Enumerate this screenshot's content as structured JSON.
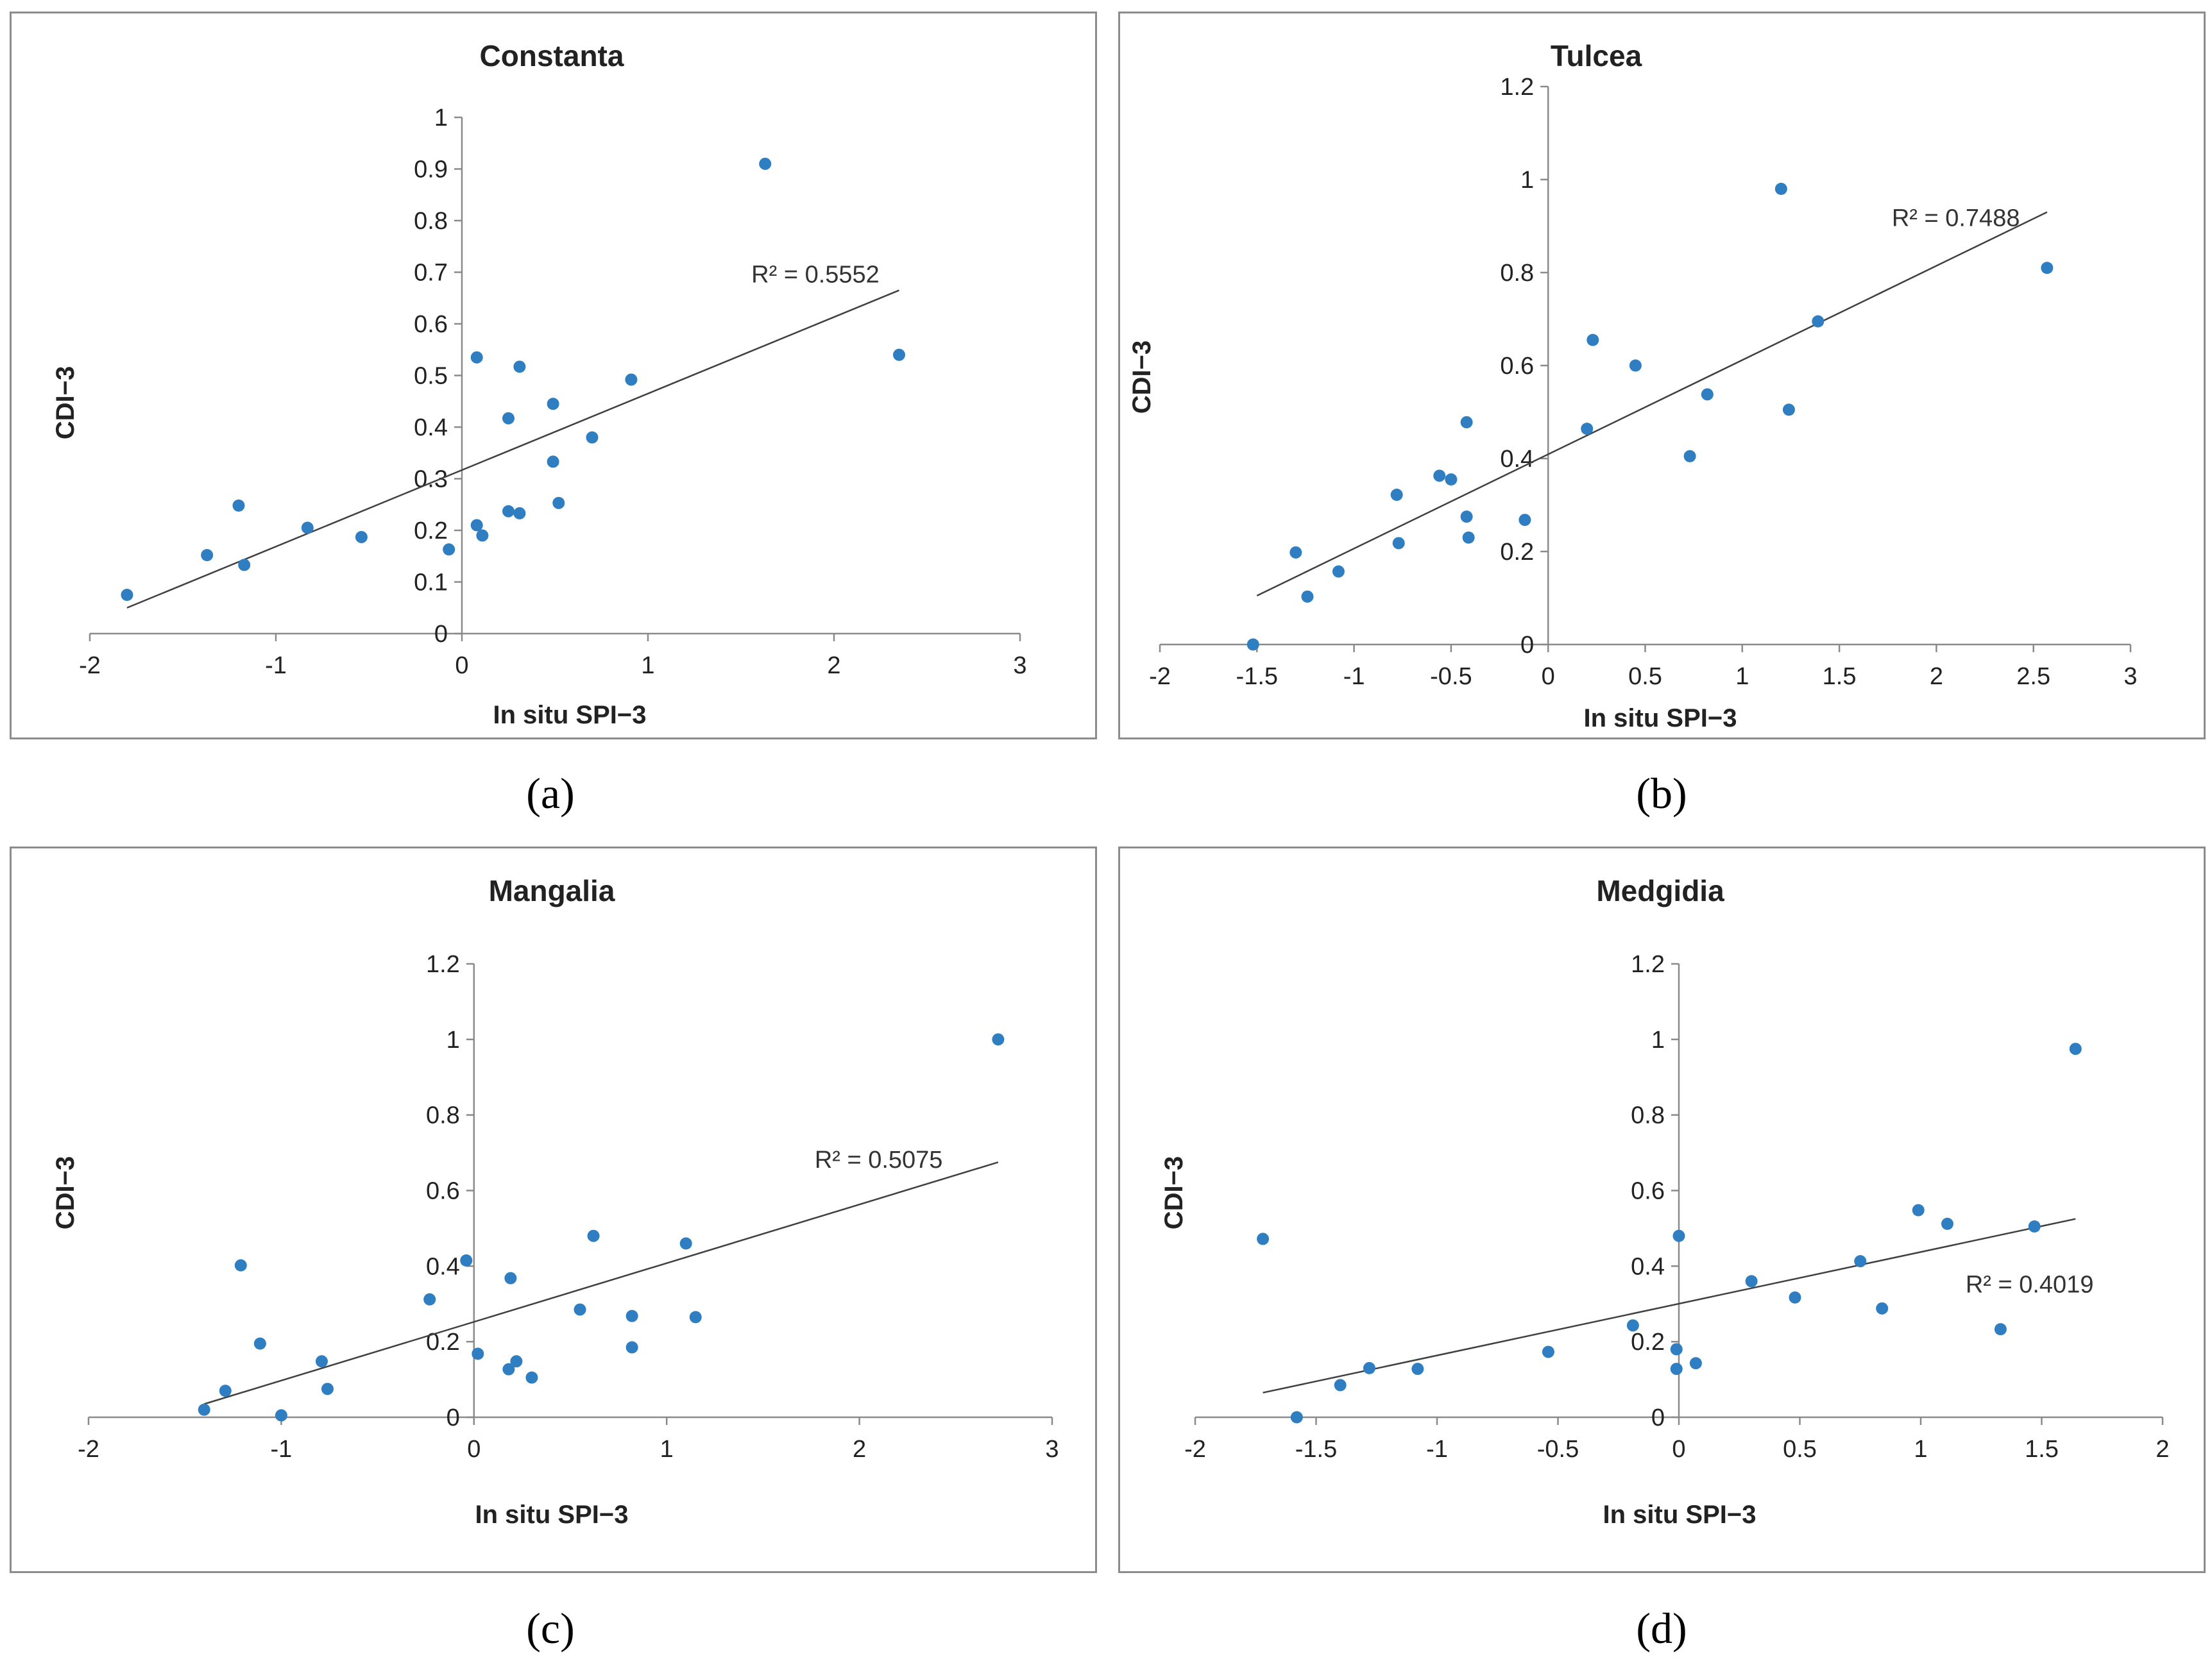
{
  "colors": {
    "points": "#2E7EC1",
    "trendline": "#404040",
    "axis": "#8a8a8a"
  },
  "chart_data": [
    {
      "type": "scatter",
      "panel": "a",
      "caption": "(a)",
      "title": "Constanta",
      "xlabel": "In situ SPI−3",
      "ylabel": "CDI−3",
      "xlim": [
        -2,
        3
      ],
      "ylim": [
        0,
        1
      ],
      "xticks": [
        -2,
        -1,
        0,
        1,
        2,
        3
      ],
      "yticks": [
        0,
        0.1,
        0.2,
        0.3,
        0.4,
        0.5,
        0.6,
        0.7,
        0.8,
        0.9,
        1
      ],
      "xtick_labels": [
        "-2",
        "-1",
        "0",
        "1",
        "2",
        "3"
      ],
      "ytick_labels": [
        "0",
        "0.1",
        "0.2",
        "0.3",
        "0.4",
        "0.5",
        "0.6",
        "0.7",
        "0.8",
        "0.9",
        "1"
      ],
      "r2_label": "R² = 0.5552",
      "r2_anchor": [
        1.9,
        0.68
      ],
      "trendline": [
        [
          -1.8,
          0.05
        ],
        [
          2.35,
          0.665
        ]
      ],
      "points": [
        [
          -1.8,
          0.075
        ],
        [
          -1.37,
          0.152
        ],
        [
          -1.2,
          0.248
        ],
        [
          -1.17,
          0.133
        ],
        [
          -0.83,
          0.205
        ],
        [
          -0.54,
          0.187
        ],
        [
          -0.07,
          0.163
        ],
        [
          0.08,
          0.535
        ],
        [
          0.08,
          0.21
        ],
        [
          0.11,
          0.19
        ],
        [
          0.25,
          0.417
        ],
        [
          0.25,
          0.237
        ],
        [
          0.31,
          0.233
        ],
        [
          0.31,
          0.517
        ],
        [
          0.49,
          0.445
        ],
        [
          0.49,
          0.333
        ],
        [
          0.52,
          0.253
        ],
        [
          0.7,
          0.38
        ],
        [
          0.91,
          0.492
        ],
        [
          1.63,
          0.91
        ],
        [
          2.35,
          0.54
        ]
      ]
    },
    {
      "type": "scatter",
      "panel": "b",
      "caption": "(b)",
      "title": "Tulcea",
      "xlabel": "In situ SPI−3",
      "ylabel": "CDI−3",
      "xlim": [
        -2,
        3
      ],
      "ylim": [
        0,
        1.2
      ],
      "xticks": [
        -2,
        -1.5,
        -1,
        -0.5,
        0,
        0.5,
        1,
        1.5,
        2,
        2.5,
        3
      ],
      "yticks": [
        0,
        0.2,
        0.4,
        0.6,
        0.8,
        1,
        1.2
      ],
      "xtick_labels": [
        "-2",
        "-1.5",
        "-1",
        "-0.5",
        "0",
        "0.5",
        "1",
        "1.5",
        "2",
        "2.5",
        "3"
      ],
      "ytick_labels": [
        "0",
        "0.2",
        "0.4",
        "0.6",
        "0.8",
        "1",
        "1.2"
      ],
      "r2_label": "R² = 0.7488",
      "r2_anchor": [
        2.1,
        0.9
      ],
      "trendline": [
        [
          -1.5,
          0.105
        ],
        [
          2.57,
          0.93
        ]
      ],
      "points": [
        [
          -1.52,
          0.0
        ],
        [
          -1.3,
          0.198
        ],
        [
          -1.24,
          0.103
        ],
        [
          -1.08,
          0.157
        ],
        [
          -0.78,
          0.322
        ],
        [
          -0.77,
          0.218
        ],
        [
          -0.56,
          0.363
        ],
        [
          -0.5,
          0.355
        ],
        [
          -0.42,
          0.478
        ],
        [
          -0.42,
          0.275
        ],
        [
          -0.41,
          0.23
        ],
        [
          -0.12,
          0.268
        ],
        [
          0.2,
          0.464
        ],
        [
          0.23,
          0.655
        ],
        [
          0.45,
          0.6
        ],
        [
          0.73,
          0.405
        ],
        [
          0.82,
          0.538
        ],
        [
          1.2,
          0.98
        ],
        [
          1.24,
          0.505
        ],
        [
          1.39,
          0.695
        ],
        [
          2.57,
          0.81
        ]
      ]
    },
    {
      "type": "scatter",
      "panel": "c",
      "caption": "(c)",
      "title": "Mangalia",
      "xlabel": "In situ SPI−3",
      "ylabel": "CDI−3",
      "xlim": [
        -2,
        3
      ],
      "ylim": [
        0,
        1.2
      ],
      "xticks": [
        -2,
        -1,
        0,
        1,
        2,
        3
      ],
      "yticks": [
        0,
        0.2,
        0.4,
        0.6,
        0.8,
        1,
        1.2
      ],
      "xtick_labels": [
        "-2",
        "-1",
        "0",
        "1",
        "2",
        "3"
      ],
      "ytick_labels": [
        "0",
        "0.2",
        "0.4",
        "0.6",
        "0.8",
        "1",
        "1.2"
      ],
      "r2_label": "R² = 0.5075",
      "r2_anchor": [
        2.1,
        0.66
      ],
      "trendline": [
        [
          -1.4,
          0.035
        ],
        [
          2.72,
          0.675
        ]
      ],
      "points": [
        [
          -1.4,
          0.02
        ],
        [
          -1.29,
          0.07
        ],
        [
          -1.21,
          0.402
        ],
        [
          -1.11,
          0.195
        ],
        [
          -1.0,
          0.005
        ],
        [
          -0.79,
          0.148
        ],
        [
          -0.76,
          0.075
        ],
        [
          -0.23,
          0.312
        ],
        [
          -0.04,
          0.415
        ],
        [
          0.02,
          0.168
        ],
        [
          0.18,
          0.127
        ],
        [
          0.19,
          0.368
        ],
        [
          0.22,
          0.148
        ],
        [
          0.3,
          0.105
        ],
        [
          0.55,
          0.285
        ],
        [
          0.62,
          0.48
        ],
        [
          0.82,
          0.268
        ],
        [
          0.82,
          0.185
        ],
        [
          1.1,
          0.46
        ],
        [
          1.15,
          0.265
        ],
        [
          2.72,
          1.0
        ]
      ]
    },
    {
      "type": "scatter",
      "panel": "d",
      "caption": "(d)",
      "title": "Medgidia",
      "xlabel": "In situ SPI−3",
      "ylabel": "CDI−3",
      "xlim": [
        -2,
        2
      ],
      "ylim": [
        0,
        1.2
      ],
      "xticks": [
        -2,
        -1.5,
        -1,
        -0.5,
        0,
        0.5,
        1,
        1.5,
        2
      ],
      "yticks": [
        0,
        0.2,
        0.4,
        0.6,
        0.8,
        1,
        1.2
      ],
      "xtick_labels": [
        "-2",
        "-1.5",
        "-1",
        "-0.5",
        "0",
        "0.5",
        "1",
        "1.5",
        "2"
      ],
      "ytick_labels": [
        "0",
        "0.2",
        "0.4",
        "0.6",
        "0.8",
        "1",
        "1.2"
      ],
      "r2_label": "R² = 0.4019",
      "r2_anchor": [
        1.45,
        0.33
      ],
      "trendline": [
        [
          -1.72,
          0.065
        ],
        [
          1.64,
          0.525
        ]
      ],
      "points": [
        [
          -1.72,
          0.472
        ],
        [
          -1.58,
          0.0
        ],
        [
          -1.4,
          0.085
        ],
        [
          -1.28,
          0.13
        ],
        [
          -1.08,
          0.128
        ],
        [
          -0.54,
          0.173
        ],
        [
          -0.19,
          0.243
        ],
        [
          -0.01,
          0.18
        ],
        [
          -0.01,
          0.128
        ],
        [
          0.0,
          0.48
        ],
        [
          0.07,
          0.143
        ],
        [
          0.3,
          0.36
        ],
        [
          0.48,
          0.317
        ],
        [
          0.75,
          0.413
        ],
        [
          0.84,
          0.288
        ],
        [
          0.99,
          0.548
        ],
        [
          1.11,
          0.512
        ],
        [
          1.33,
          0.233
        ],
        [
          1.47,
          0.505
        ],
        [
          1.64,
          0.975
        ]
      ]
    }
  ]
}
